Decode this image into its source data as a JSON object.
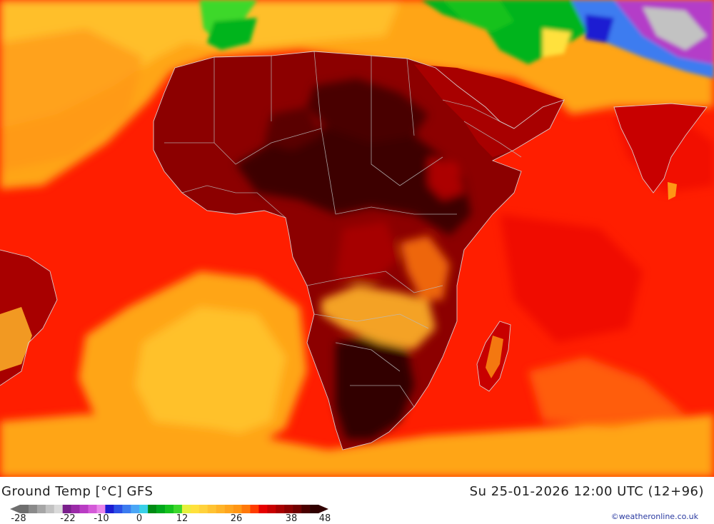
{
  "map": {
    "title": "Ground Temp [°C] GFS",
    "datetime": "Su 25-01-2026 12:00 UTC (12+96)",
    "credit": "©weatheronline.co.uk",
    "legend_ticks": [
      "-28",
      "-22",
      "-10",
      "0",
      "12",
      "26",
      "38",
      "48"
    ],
    "legend_colors": [
      "#6e6e6e",
      "#8a8a8a",
      "#a6a6a6",
      "#c2c2c2",
      "#dadada",
      "#7a1f8c",
      "#9b2aa8",
      "#b93cc4",
      "#d45ad8",
      "#ea86ea",
      "#1c1cd2",
      "#2b50e6",
      "#3c7cf0",
      "#4aa6f6",
      "#3ad0e8",
      "#008c14",
      "#00a81c",
      "#14c21e",
      "#3cd82c",
      "#e6f03c",
      "#ffe13c",
      "#ffd23c",
      "#ffc332",
      "#ffb428",
      "#ffa51e",
      "#ff9614",
      "#ff780a",
      "#ff3c00",
      "#e60000",
      "#c80000",
      "#a80000",
      "#8c0000",
      "#700000",
      "#4a0000",
      "#300000"
    ],
    "colors": {
      "ocean_warm": "#ff1e00",
      "ocean_mild": "#ffa514",
      "ocean_cool": "#ffc832",
      "land_hot": "#8c0000",
      "land_very_hot": "#3c0000",
      "land_medium": "#ffb428",
      "cold_green": "#00b41e",
      "cold_purple": "#b43cc8"
    }
  }
}
